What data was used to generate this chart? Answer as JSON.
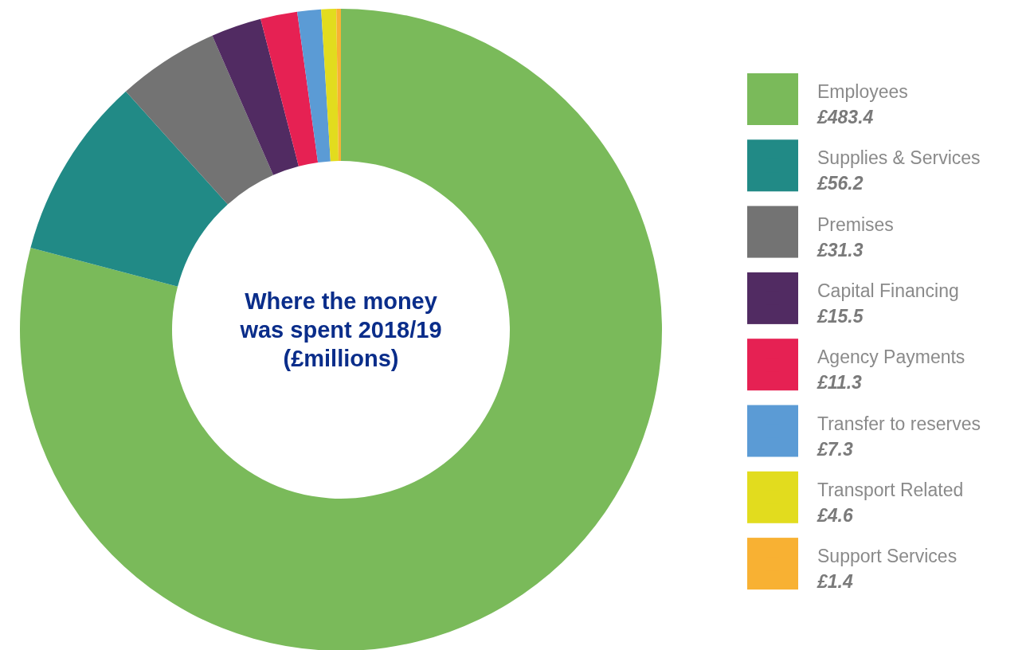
{
  "chart_data": {
    "type": "donut",
    "title": "Where the money was spent 2018/19 (£millions)",
    "categories": [
      "Employees",
      "Supplies & Services",
      "Premises",
      "Capital Financing",
      "Agency Payments",
      "Transfer to reserves",
      "Transport Related",
      "Support Services"
    ],
    "values": [
      483.4,
      56.2,
      31.3,
      15.5,
      11.3,
      7.3,
      4.6,
      1.4
    ],
    "value_labels": [
      "£483.4",
      "£56.2",
      "£31.3",
      "£15.5",
      "£11.3",
      "£7.3",
      "£4.6",
      "£1.4"
    ],
    "colors": [
      "#7aba5a",
      "#218a86",
      "#737373",
      "#512b62",
      "#e62153",
      "#5b9bd5",
      "#e2dc1e",
      "#f8b133"
    ],
    "legend": "right"
  }
}
